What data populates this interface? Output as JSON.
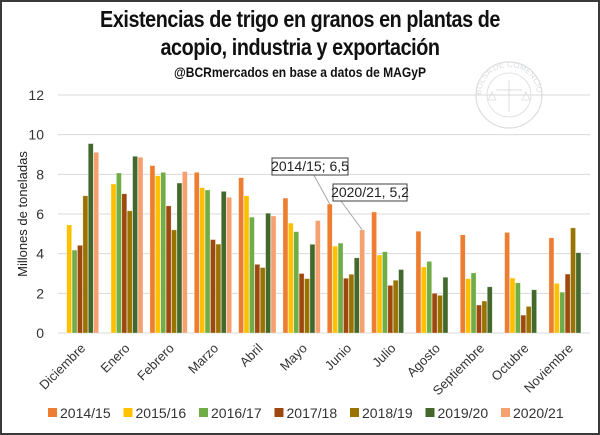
{
  "chart_data": {
    "type": "bar",
    "title": "Existencias de trigo en granos en plantas de acopio, industria y exportación",
    "title_lines": [
      "Existencias de trigo en granos en plantas de",
      "acopio, industria y exportación"
    ],
    "subtitle": "@BCRmercados en base a datos de MAGyP",
    "xlabel": "",
    "ylabel": "Millones de toneladas",
    "ylim": [
      0,
      12
    ],
    "yticks": [
      0,
      2,
      4,
      6,
      8,
      10,
      12
    ],
    "grid": true,
    "legend_position": "bottom",
    "watermark": "BOLSA DE COMERCIO DE ROSARIO",
    "categories": [
      "Diciembre",
      "Enero",
      "Febrero",
      "Marzo",
      "Abril",
      "Mayo",
      "Junio",
      "Julio",
      "Agosto",
      "Septiembre",
      "Octubre",
      "Noviembre"
    ],
    "series": [
      {
        "name": "2014/15",
        "color": "#ED7D31",
        "values": [
          null,
          null,
          8.44,
          8.1,
          7.83,
          6.8,
          6.5,
          6.1,
          5.13,
          4.95,
          5.07,
          4.8
        ]
      },
      {
        "name": "2015/16",
        "color": "#FFC000",
        "values": [
          5.45,
          7.51,
          7.93,
          7.33,
          6.92,
          5.54,
          4.38,
          3.93,
          3.33,
          2.74,
          2.77,
          2.5
        ]
      },
      {
        "name": "2016/17",
        "color": "#70AD47",
        "values": [
          4.18,
          8.07,
          8.1,
          7.21,
          5.84,
          5.11,
          4.53,
          4.1,
          3.61,
          3.03,
          2.53,
          2.06
        ]
      },
      {
        "name": "2017/18",
        "color": "#9E480E",
        "values": [
          4.42,
          7.02,
          6.41,
          4.71,
          3.46,
          3.0,
          2.76,
          2.4,
          2.0,
          1.41,
          0.9,
          2.97
        ]
      },
      {
        "name": "2018/19",
        "color": "#997300",
        "values": [
          6.92,
          6.16,
          5.2,
          4.48,
          3.3,
          2.74,
          2.96,
          2.66,
          1.9,
          1.61,
          1.34,
          5.3
        ]
      },
      {
        "name": "2019/20",
        "color": "#43682B",
        "values": [
          9.55,
          8.91,
          7.56,
          7.14,
          6.04,
          4.47,
          3.79,
          3.2,
          2.81,
          2.33,
          2.18,
          4.05
        ]
      },
      {
        "name": "2020/21",
        "color": "#F4A16F",
        "values": [
          9.11,
          8.86,
          8.14,
          6.84,
          5.9,
          5.67,
          5.2,
          null,
          null,
          null,
          null,
          null
        ]
      }
    ],
    "annotations": [
      {
        "text": "2014/15; 6,5",
        "series": "2014/15",
        "category": "Junio",
        "value": 6.5
      },
      {
        "text": "2020/21, 5,2",
        "series": "2020/21",
        "category": "Junio",
        "value": 5.2
      }
    ]
  }
}
